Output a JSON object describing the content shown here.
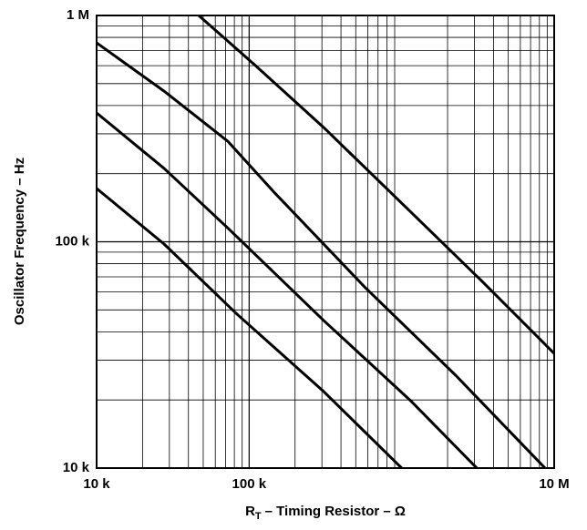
{
  "chart_data": {
    "type": "line",
    "ylabel": "Oscillator Frequency – Hz",
    "xlabel": {
      "main": "R",
      "subscript": "T",
      "rest": "– Timing Resistor – Ω"
    },
    "log_x": true,
    "log_y": true,
    "grid": true,
    "xlim": [
      10000,
      10000000
    ],
    "xticks": [
      {
        "value": 10000,
        "label": "10 k"
      },
      {
        "value": 100000,
        "label": "100 k"
      },
      {
        "value": 10000000,
        "label": "10 M"
      }
    ],
    "ylim": [
      10000,
      1000000
    ],
    "yticks": [
      {
        "value": 10000,
        "label": "10 k"
      },
      {
        "value": 100000,
        "label": "100 k"
      },
      {
        "value": 1000000,
        "label": "1 M"
      }
    ],
    "series": [
      {
        "color": "#000000",
        "x": [
          46700,
          110000,
          308000,
          1140000,
          3420000,
          10000000
        ],
        "values": [
          1000000,
          601000,
          320000,
          136000,
          66200,
          32100
        ]
      },
      {
        "color": "#000000",
        "x": [
          10000,
          27700,
          72500,
          144000,
          571000,
          2260000,
          8710000
        ],
        "values": [
          757000,
          463000,
          278000,
          167000,
          63200,
          25700,
          10000
        ]
      },
      {
        "color": "#000000",
        "x": [
          10000,
          27700,
          72500,
          308000,
          1140000,
          3110000
        ],
        "values": [
          371000,
          211000,
          115000,
          44900,
          19900,
          10000
        ]
      },
      {
        "color": "#000000",
        "x": [
          10000,
          27700,
          83200,
          308000,
          1000000
        ],
        "values": [
          172000,
          97700,
          47900,
          21800,
          10000
        ]
      }
    ]
  }
}
